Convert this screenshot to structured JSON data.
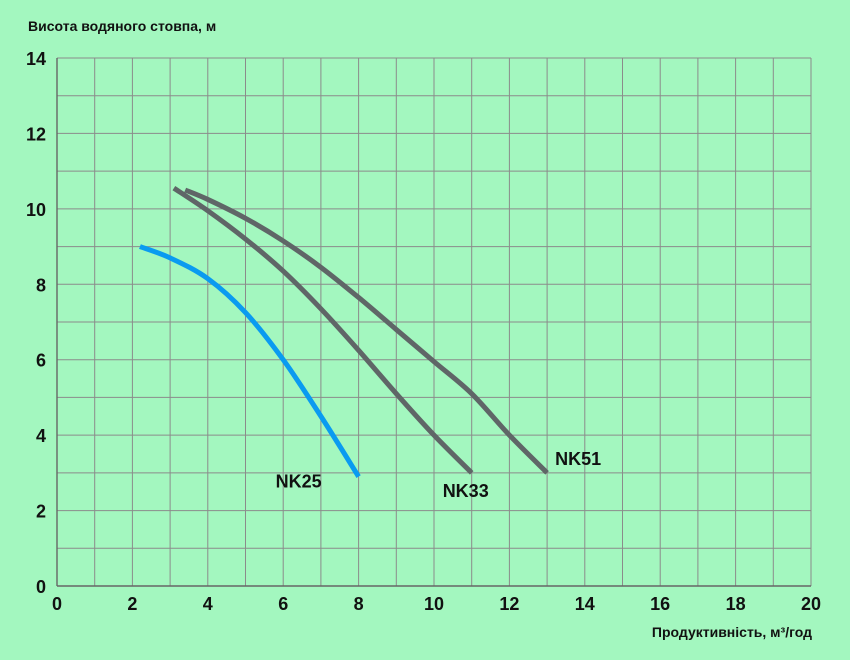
{
  "chart_data": {
    "type": "line",
    "title": "",
    "ylabel": "Висота водяного стовпа, м",
    "xlabel": "Продуктивність, м³/год",
    "xlim": [
      0,
      20
    ],
    "ylim": [
      0,
      14
    ],
    "x_ticks": [
      "0",
      "2",
      "4",
      "6",
      "8",
      "10",
      "12",
      "14",
      "16",
      "18",
      "20"
    ],
    "y_ticks": [
      "0",
      "2",
      "4",
      "6",
      "8",
      "10",
      "12",
      "14"
    ],
    "grid": true,
    "series": [
      {
        "name": "NK25",
        "color": "#0a9bf0",
        "points": [
          [
            2.2,
            9.0
          ],
          [
            3.0,
            8.7
          ],
          [
            4.0,
            8.15
          ],
          [
            5.0,
            7.25
          ],
          [
            6.0,
            6.0
          ],
          [
            7.0,
            4.5
          ],
          [
            8.0,
            2.9
          ]
        ]
      },
      {
        "name": "NK33",
        "color": "#5f6667",
        "points": [
          [
            3.1,
            10.55
          ],
          [
            4.0,
            9.95
          ],
          [
            5.0,
            9.2
          ],
          [
            6.0,
            8.35
          ],
          [
            7.0,
            7.35
          ],
          [
            8.0,
            6.25
          ],
          [
            9.0,
            5.1
          ],
          [
            10.0,
            4.0
          ],
          [
            11.0,
            3.0
          ]
        ]
      },
      {
        "name": "NK51",
        "color": "#5f6667",
        "points": [
          [
            3.4,
            10.5
          ],
          [
            4.0,
            10.25
          ],
          [
            5.0,
            9.75
          ],
          [
            6.0,
            9.15
          ],
          [
            7.0,
            8.45
          ],
          [
            8.0,
            7.65
          ],
          [
            9.0,
            6.8
          ],
          [
            10.0,
            5.95
          ],
          [
            11.0,
            5.1
          ],
          [
            12.0,
            4.0
          ],
          [
            13.0,
            3.0
          ]
        ]
      }
    ]
  }
}
